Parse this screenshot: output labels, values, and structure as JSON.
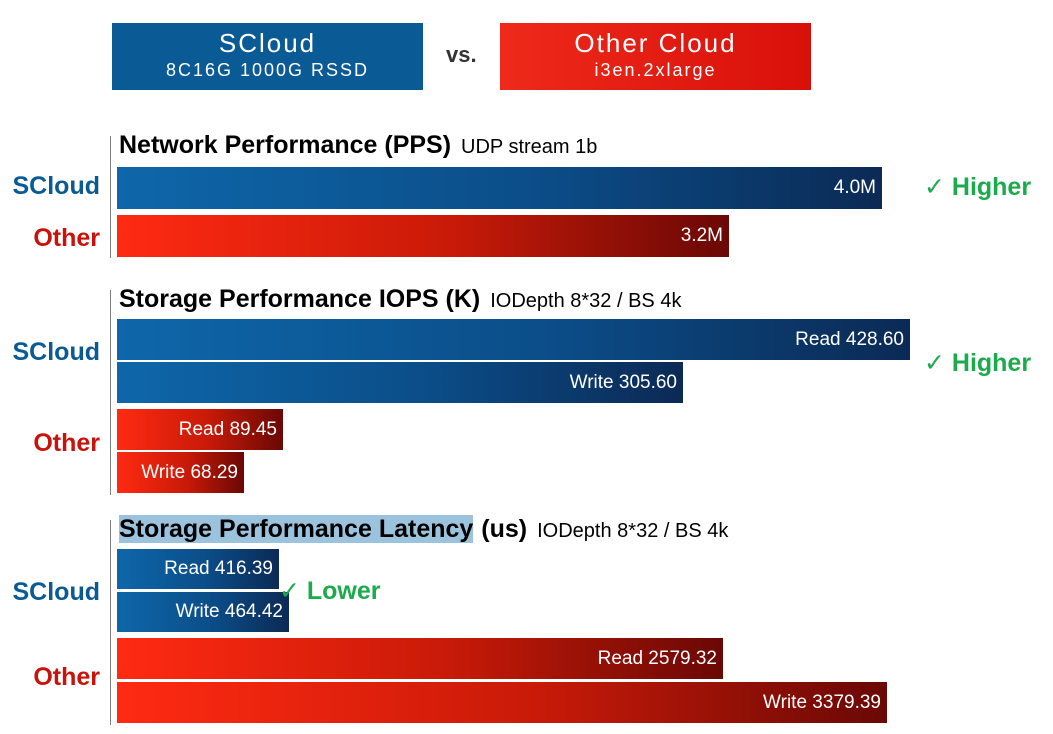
{
  "header": {
    "left_title": "SCloud",
    "left_subtitle": "8C16G 1000G RSSD",
    "vs": "vs.",
    "right_title": "Other Cloud",
    "right_subtitle": "i3en.2xlarge"
  },
  "colors": {
    "scloud_blue": "#0a5a96",
    "other_red": "#d8100a",
    "verdict_green": "#1bab4c"
  },
  "chart_data": [
    {
      "type": "bar",
      "orientation": "horizontal",
      "title": "Network Performance (PPS)",
      "subtitle": "UDP stream 1b",
      "verdict": "✓ Higher",
      "groups": [
        {
          "label": "SCloud",
          "bars": [
            {
              "value": 4.0,
              "label": "4.0M"
            }
          ]
        },
        {
          "label": "Other",
          "bars": [
            {
              "value": 3.2,
              "label": "3.2M"
            }
          ]
        }
      ]
    },
    {
      "type": "bar",
      "orientation": "horizontal",
      "title": "Storage Performance IOPS (K)",
      "subtitle": "IODepth 8*32 / BS 4k",
      "verdict": "✓ Higher",
      "groups": [
        {
          "label": "SCloud",
          "bars": [
            {
              "value": 428.6,
              "label": "Read 428.60"
            },
            {
              "value": 305.6,
              "label": "Write 305.60"
            }
          ]
        },
        {
          "label": "Other",
          "bars": [
            {
              "value": 89.45,
              "label": "Read 89.45"
            },
            {
              "value": 68.29,
              "label": "Write 68.29"
            }
          ]
        }
      ]
    },
    {
      "type": "bar",
      "orientation": "horizontal",
      "title": "Storage Performance Latency",
      "title_unit": "(us)",
      "subtitle": "IODepth 8*32 / BS 4k",
      "verdict": "✓ Lower",
      "groups": [
        {
          "label": "SCloud",
          "bars": [
            {
              "value": 416.39,
              "label": "Read 416.39"
            },
            {
              "value": 464.42,
              "label": "Write 464.42"
            }
          ]
        },
        {
          "label": "Other",
          "bars": [
            {
              "value": 2579.32,
              "label": "Read 2579.32"
            },
            {
              "value": 3379.39,
              "label": "Write 3379.39"
            }
          ]
        }
      ]
    }
  ]
}
